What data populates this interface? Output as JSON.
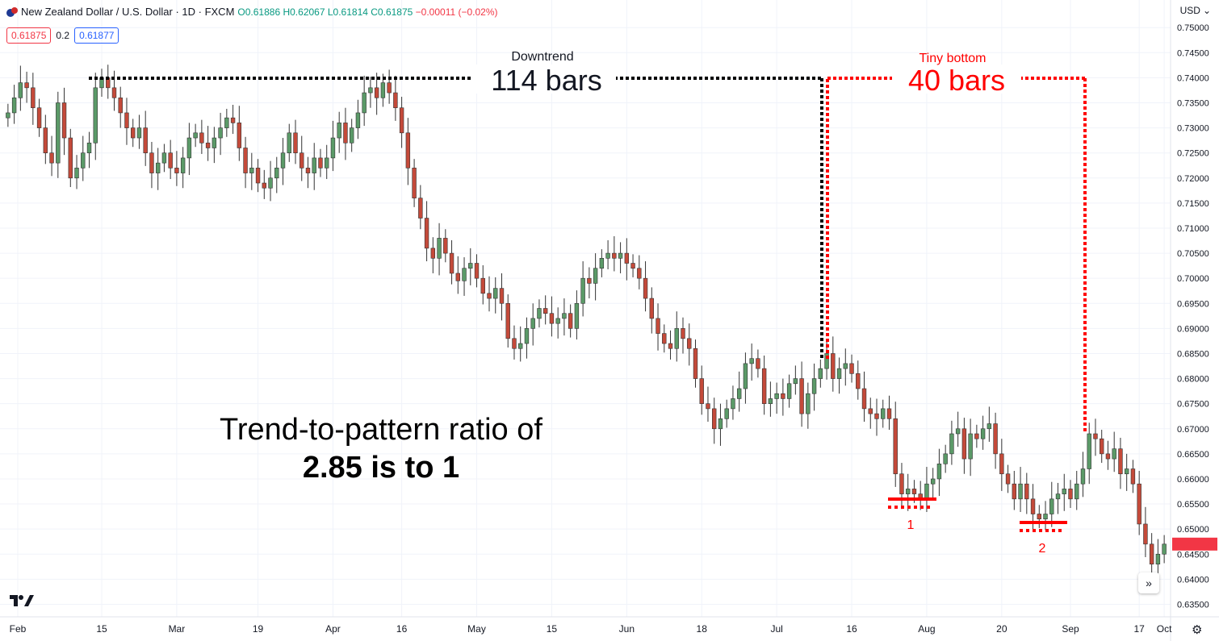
{
  "header": {
    "symbol": "New Zealand Dollar / U.S. Dollar · 1D · FXCM",
    "open": "O0.61886",
    "high": "H0.62067",
    "low": "L0.61814",
    "close": "C0.61875",
    "change": "−0.00011 (−0.02%)",
    "bid": "0.61875",
    "spread": "0.2",
    "ask": "0.61877",
    "currency": "USD"
  },
  "annotations": {
    "downtrend_label": "Downtrend",
    "downtrend_bars": "114 bars",
    "bottom_label": "Tiny bottom",
    "bottom_bars": "40 bars",
    "ratio_line1": "Trend-to-pattern ratio of",
    "ratio_line2": "2.85 is to 1",
    "marker1": "1",
    "marker2": "2"
  },
  "chart_data": {
    "type": "candlestick",
    "ylim": [
      0.6325,
      0.7555
    ],
    "y_ticks": [
      "0.75000",
      "0.74500",
      "0.74000",
      "0.73500",
      "0.73000",
      "0.72500",
      "0.72000",
      "0.71500",
      "0.71000",
      "0.70500",
      "0.70000",
      "0.69500",
      "0.69000",
      "0.68500",
      "0.68000",
      "0.67500",
      "0.67000",
      "0.66500",
      "0.66000",
      "0.65500",
      "0.65000",
      "0.64500",
      "0.64000",
      "0.63500"
    ],
    "x_ticks": [
      "Feb",
      "15",
      "Mar",
      "19",
      "Apr",
      "16",
      "May",
      "15",
      "Jun",
      "18",
      "Jul",
      "16",
      "Aug",
      "20",
      "Sep",
      "17",
      "Oct"
    ],
    "colors": {
      "up": "#5b9a68",
      "down": "#c44a3a",
      "annotation_black": "#000000",
      "annotation_red": "#ff0000"
    },
    "closes": [
      0.733,
      0.736,
      0.739,
      0.738,
      0.734,
      0.73,
      0.725,
      0.723,
      0.735,
      0.728,
      0.72,
      0.722,
      0.725,
      0.727,
      0.738,
      0.74,
      0.738,
      0.736,
      0.733,
      0.73,
      0.728,
      0.73,
      0.725,
      0.721,
      0.723,
      0.725,
      0.722,
      0.721,
      0.724,
      0.728,
      0.729,
      0.727,
      0.726,
      0.728,
      0.73,
      0.732,
      0.731,
      0.726,
      0.721,
      0.722,
      0.719,
      0.718,
      0.72,
      0.722,
      0.725,
      0.729,
      0.725,
      0.722,
      0.721,
      0.724,
      0.722,
      0.724,
      0.728,
      0.731,
      0.727,
      0.73,
      0.733,
      0.737,
      0.738,
      0.736,
      0.739,
      0.737,
      0.734,
      0.729,
      0.722,
      0.716,
      0.712,
      0.706,
      0.704,
      0.708,
      0.705,
      0.701,
      0.6995,
      0.702,
      0.703,
      0.7,
      0.697,
      0.696,
      0.698,
      0.695,
      0.688,
      0.686,
      0.687,
      0.69,
      0.692,
      0.694,
      0.693,
      0.691,
      0.692,
      0.693,
      0.69,
      0.695,
      0.7,
      0.699,
      0.702,
      0.704,
      0.705,
      0.704,
      0.705,
      0.703,
      0.702,
      0.7,
      0.696,
      0.692,
      0.689,
      0.687,
      0.686,
      0.69,
      0.688,
      0.686,
      0.68,
      0.675,
      0.674,
      0.67,
      0.672,
      0.674,
      0.676,
      0.678,
      0.683,
      0.684,
      0.682,
      0.675,
      0.676,
      0.677,
      0.676,
      0.679,
      0.68,
      0.673,
      0.677,
      0.68,
      0.682,
      0.685,
      0.68,
      0.682,
      0.683,
      0.681,
      0.678,
      0.674,
      0.673,
      0.672,
      0.674,
      0.672,
      0.661,
      0.657,
      0.658,
      0.657,
      0.656,
      0.659,
      0.66,
      0.663,
      0.665,
      0.669,
      0.67,
      0.664,
      0.669,
      0.668,
      0.67,
      0.671,
      0.665,
      0.661,
      0.659,
      0.656,
      0.659,
      0.656,
      0.653,
      0.652,
      0.653,
      0.656,
      0.657,
      0.658,
      0.656,
      0.659,
      0.662,
      0.669,
      0.668,
      0.665,
      0.664,
      0.666,
      0.661,
      0.662,
      0.659,
      0.651,
      0.647,
      0.643,
      0.645,
      0.647
    ]
  }
}
